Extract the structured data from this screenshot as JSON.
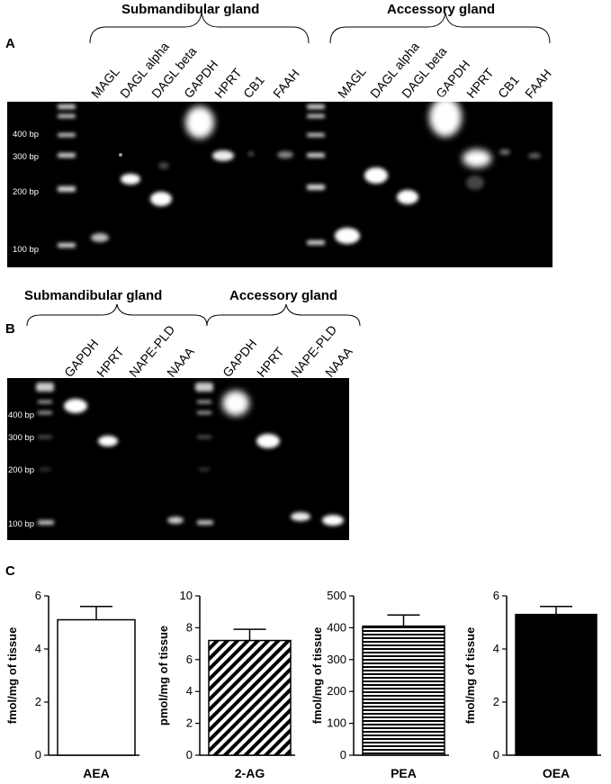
{
  "panel_a": {
    "letter": "A",
    "groups": [
      "Submandibular gland",
      "Accessory gland"
    ],
    "lanes_left": [
      "MAGL",
      "DAGL alpha",
      "DAGL beta",
      "GAPDH",
      "HPRT",
      "CB1",
      "FAAH"
    ],
    "lanes_right": [
      "MAGL",
      "DAGL alpha",
      "DAGL beta",
      "GAPDH",
      "HPRT",
      "CB1",
      "FAAH"
    ],
    "ladder": [
      "400 bp",
      "300 bp",
      "200 bp",
      "100 bp"
    ]
  },
  "panel_b": {
    "letter": "B",
    "groups": [
      "Submandibular gland",
      "Accessory gland"
    ],
    "lanes_left": [
      "GAPDH",
      "HPRT",
      "NAPE-PLD",
      "NAAA"
    ],
    "lanes_right": [
      "GAPDH",
      "HPRT",
      "NAPE-PLD",
      "NAAA"
    ],
    "ladder": [
      "400 bp",
      "300 bp",
      "200 bp",
      "100 bp"
    ]
  },
  "panel_c": {
    "letter": "C"
  },
  "chart_data": [
    {
      "type": "bar",
      "categories": [
        "AEA"
      ],
      "values": [
        5.1
      ],
      "error": [
        0.5
      ],
      "ylabel": "fmol/mg of tissue",
      "ylim": [
        0,
        6
      ],
      "ticks": [
        0,
        2,
        4,
        6
      ],
      "fill": "white"
    },
    {
      "type": "bar",
      "categories": [
        "2-AG"
      ],
      "values": [
        7.2
      ],
      "error": [
        0.7
      ],
      "ylabel": "pmol/mg of tissue",
      "ylim": [
        0,
        10
      ],
      "ticks": [
        0,
        2,
        4,
        6,
        8,
        10
      ],
      "fill": "diagonal-hatch"
    },
    {
      "type": "bar",
      "categories": [
        "PEA"
      ],
      "values": [
        405
      ],
      "error": [
        35
      ],
      "ylabel": "fmol/mg of tissue",
      "ylim": [
        0,
        500
      ],
      "ticks": [
        0,
        100,
        200,
        300,
        400,
        500
      ],
      "fill": "horizontal-stripes"
    },
    {
      "type": "bar",
      "categories": [
        "OEA"
      ],
      "values": [
        5.3
      ],
      "error": [
        0.3
      ],
      "ylabel": "fmol/mg of tissue",
      "ylim": [
        0,
        6
      ],
      "ticks": [
        0,
        2,
        4,
        6
      ],
      "fill": "black"
    }
  ]
}
